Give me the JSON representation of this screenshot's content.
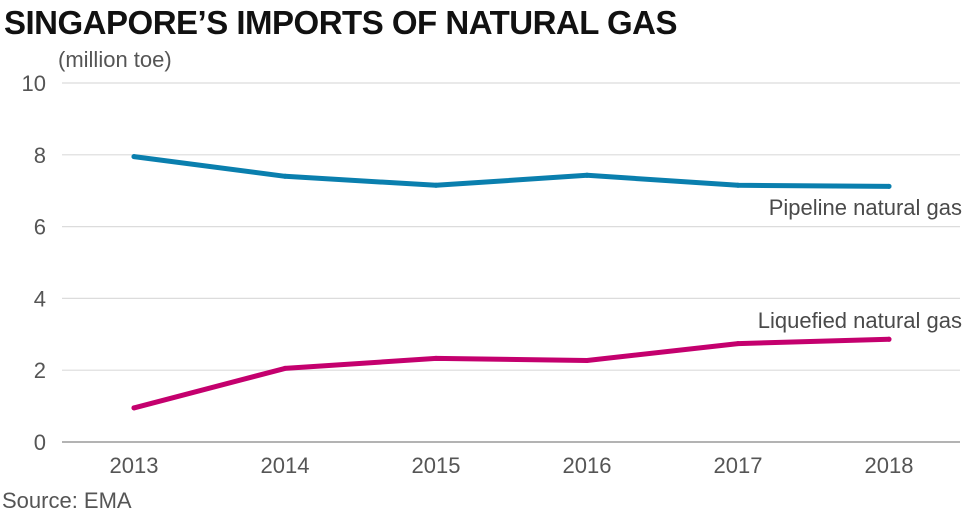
{
  "title": "SINGAPORE’S IMPORTS OF NATURAL GAS",
  "unit": "(million toe)",
  "source": "Source: EMA",
  "chart_data": {
    "type": "line",
    "title": "SINGAPORE’S IMPORTS OF NATURAL GAS",
    "ylabel": "(million toe)",
    "x": [
      "2013",
      "2014",
      "2015",
      "2016",
      "2017",
      "2018"
    ],
    "ylim": [
      0,
      10
    ],
    "yticks": [
      0,
      2,
      4,
      6,
      8,
      10
    ],
    "grid": true,
    "series": [
      {
        "name": "Pipeline natural gas",
        "color": "#0a7fae",
        "values": [
          7.95,
          7.4,
          7.15,
          7.43,
          7.15,
          7.12
        ]
      },
      {
        "name": "Liquefied natural gas",
        "color": "#c4006e",
        "values": [
          0.95,
          2.05,
          2.33,
          2.27,
          2.74,
          2.86
        ]
      }
    ]
  }
}
